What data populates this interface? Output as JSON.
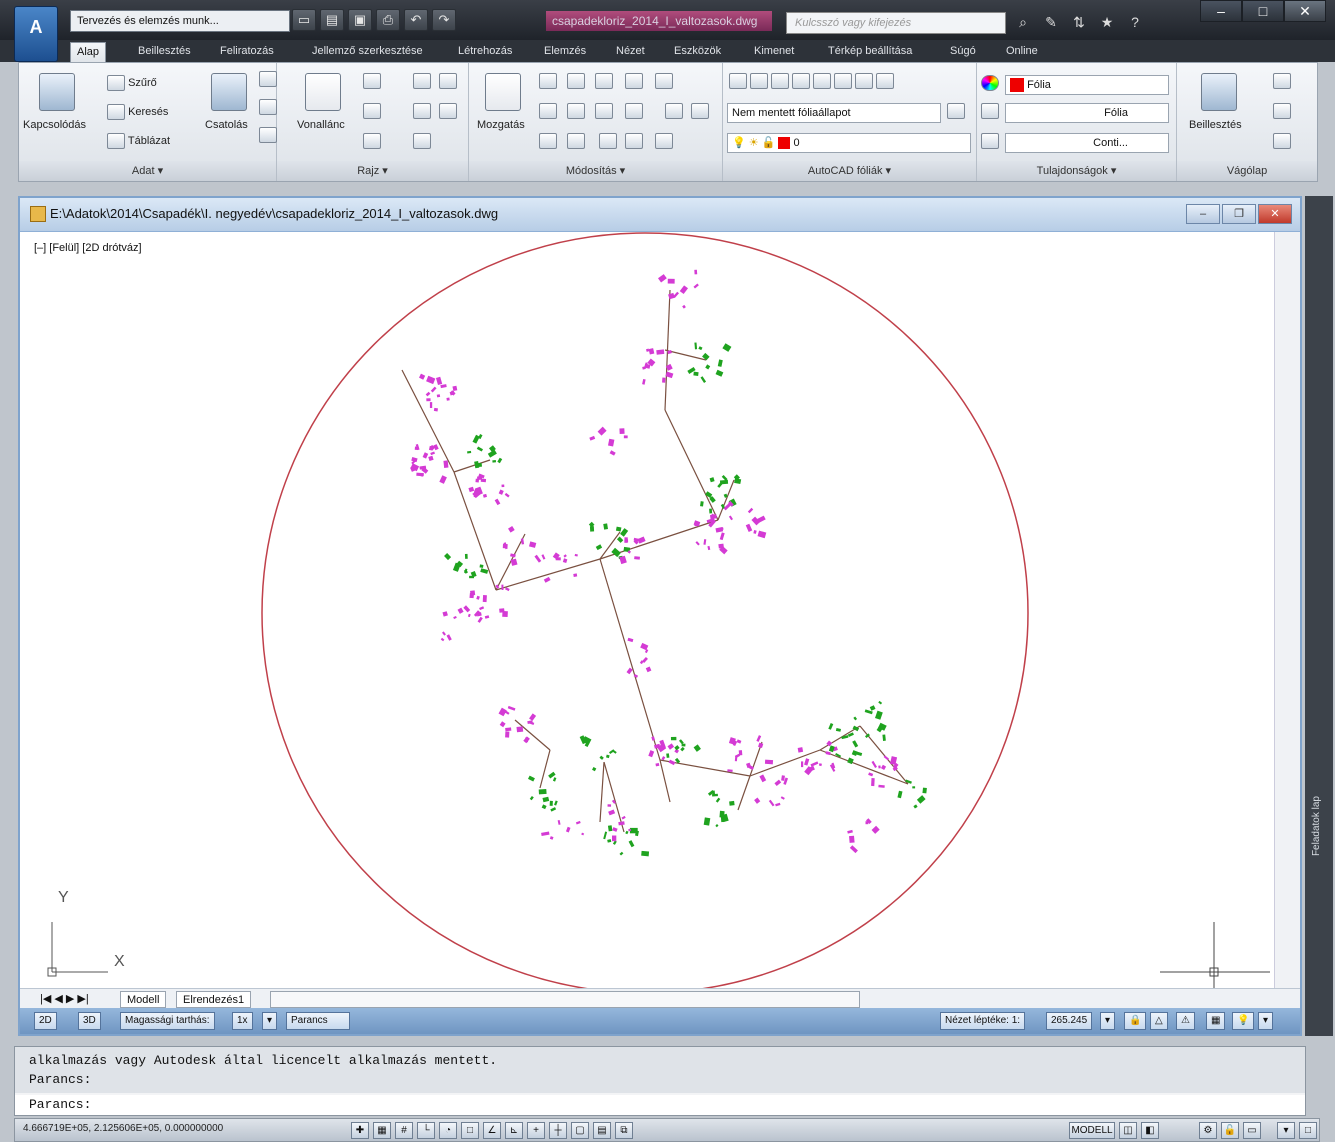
{
  "titlebar": {
    "app_button": "A",
    "workspace": "Tervezés és elemzés munk...",
    "document_title": "csapadekloriz_2014_I_valtozasok.dwg",
    "search_placeholder": "Kulcsszó vagy kifejezés",
    "win_minimize": "–",
    "win_restore": "□",
    "win_close": "✕"
  },
  "tabs": [
    "Alap",
    "Beillesztés",
    "Feliratozás",
    "Jellemző szerkesztése",
    "Létrehozás",
    "Elemzés",
    "Nézet",
    "Eszközök",
    "Kimenet",
    "Térkép beállítása",
    "Súgó",
    "Online"
  ],
  "ribbon": {
    "adat": {
      "title": "Adat ▾",
      "connect": "Kapcsolódás",
      "filter": "Szűrő",
      "search": "Keresés",
      "table": "Táblázat"
    },
    "csatolas": {
      "label": "Csatolás"
    },
    "rajz": {
      "title": "Rajz ▾",
      "polyline": "Vonallánc"
    },
    "modositas": {
      "title": "Módosítás ▾",
      "move": "Mozgatás"
    },
    "folia": {
      "title": "AutoCAD fóliák ▾",
      "layer_state": "Nem mentett fóliaállapot",
      "layer_current": "0"
    },
    "tulajdonsagok": {
      "title": "Tulajdonságok ▾",
      "color": "Fólia",
      "linetype": "Fólia",
      "lineweight": "Conti..."
    },
    "vagolap": {
      "title": "Vágólap",
      "paste": "Beillesztés"
    }
  },
  "drawing": {
    "path": "E:\\Adatok\\2014\\Csapadék\\I. negyedév\\csapadekloriz_2014_I_valtozasok.dwg",
    "viewport_label": "[–] [Felül] [2D drótváz]",
    "axis_x": "X",
    "axis_y": "Y",
    "layout_tabs": [
      "Modell",
      "Elrendezés1"
    ],
    "status": {
      "btn_2d": "2D",
      "btn_3d": "3D",
      "height": "Magassági tarthás:",
      "height_val": "1x",
      "command": "Parancs",
      "scale_label": "Nézet léptéke: 1:",
      "scale_value": "265.245"
    }
  },
  "side_palette": {
    "label": "Feladatok lap"
  },
  "command": {
    "history": [
      "alkalmazás vagy Autodesk által licencelt alkalmazás mentett.",
      "Parancs:"
    ],
    "prompt": "Parancs:"
  },
  "appstatus": {
    "coords": "4.666719E+05, 2.125606E+05, 0.000000000",
    "model": "MODELL"
  },
  "colors": {
    "circle": "#c0404a",
    "magenta": "#d43bd4",
    "green": "#1fa31f",
    "tree": "#7a5040"
  }
}
